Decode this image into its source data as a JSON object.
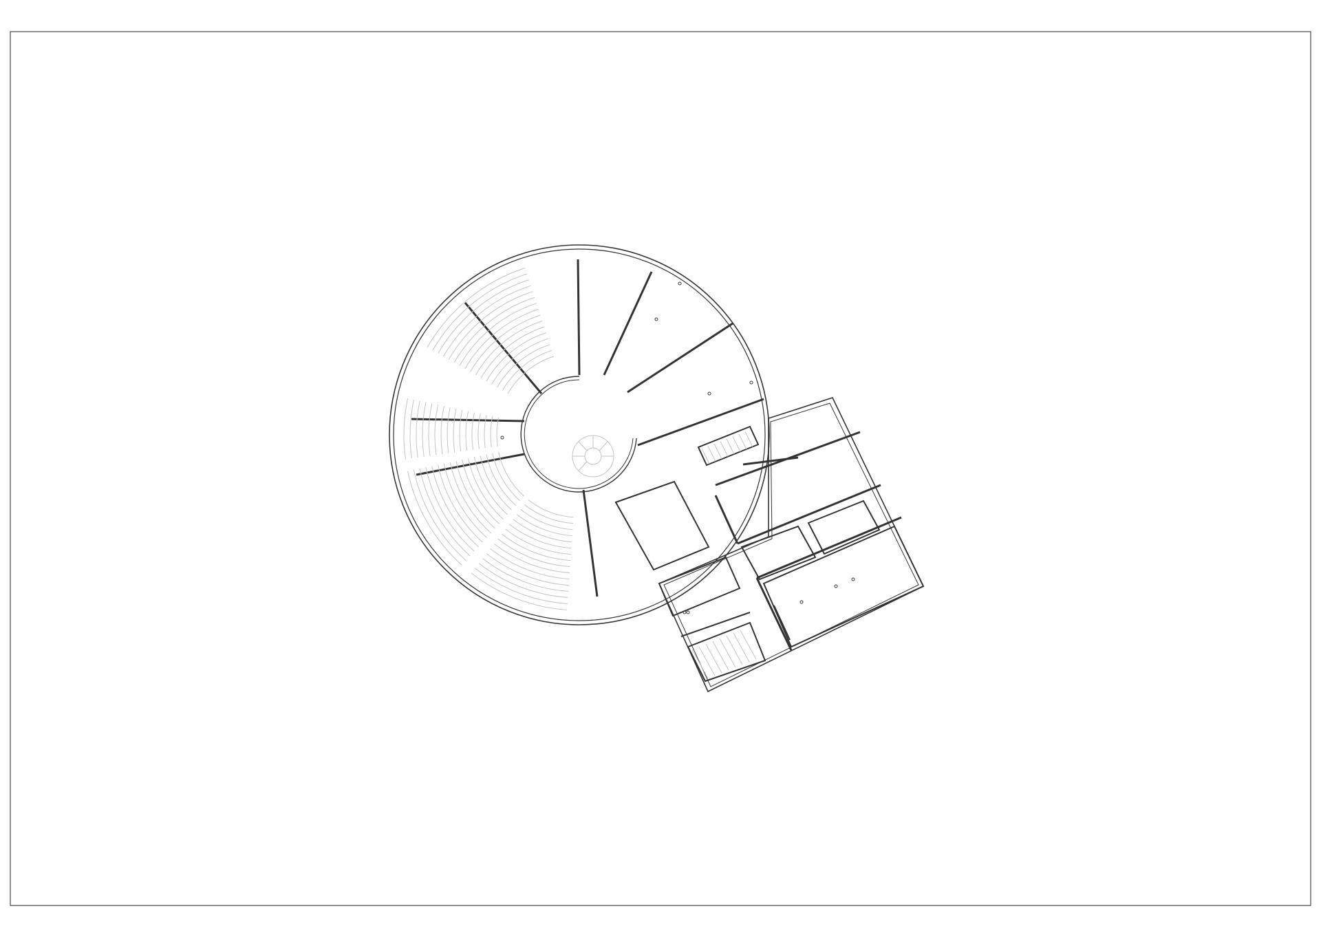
{
  "drawing": {
    "kind": "architectural floor plan",
    "colors": {
      "background": "#ffffff",
      "line": "#333333",
      "fine_line": "#c4c4c4",
      "frame": "#555555"
    },
    "labels": []
  }
}
